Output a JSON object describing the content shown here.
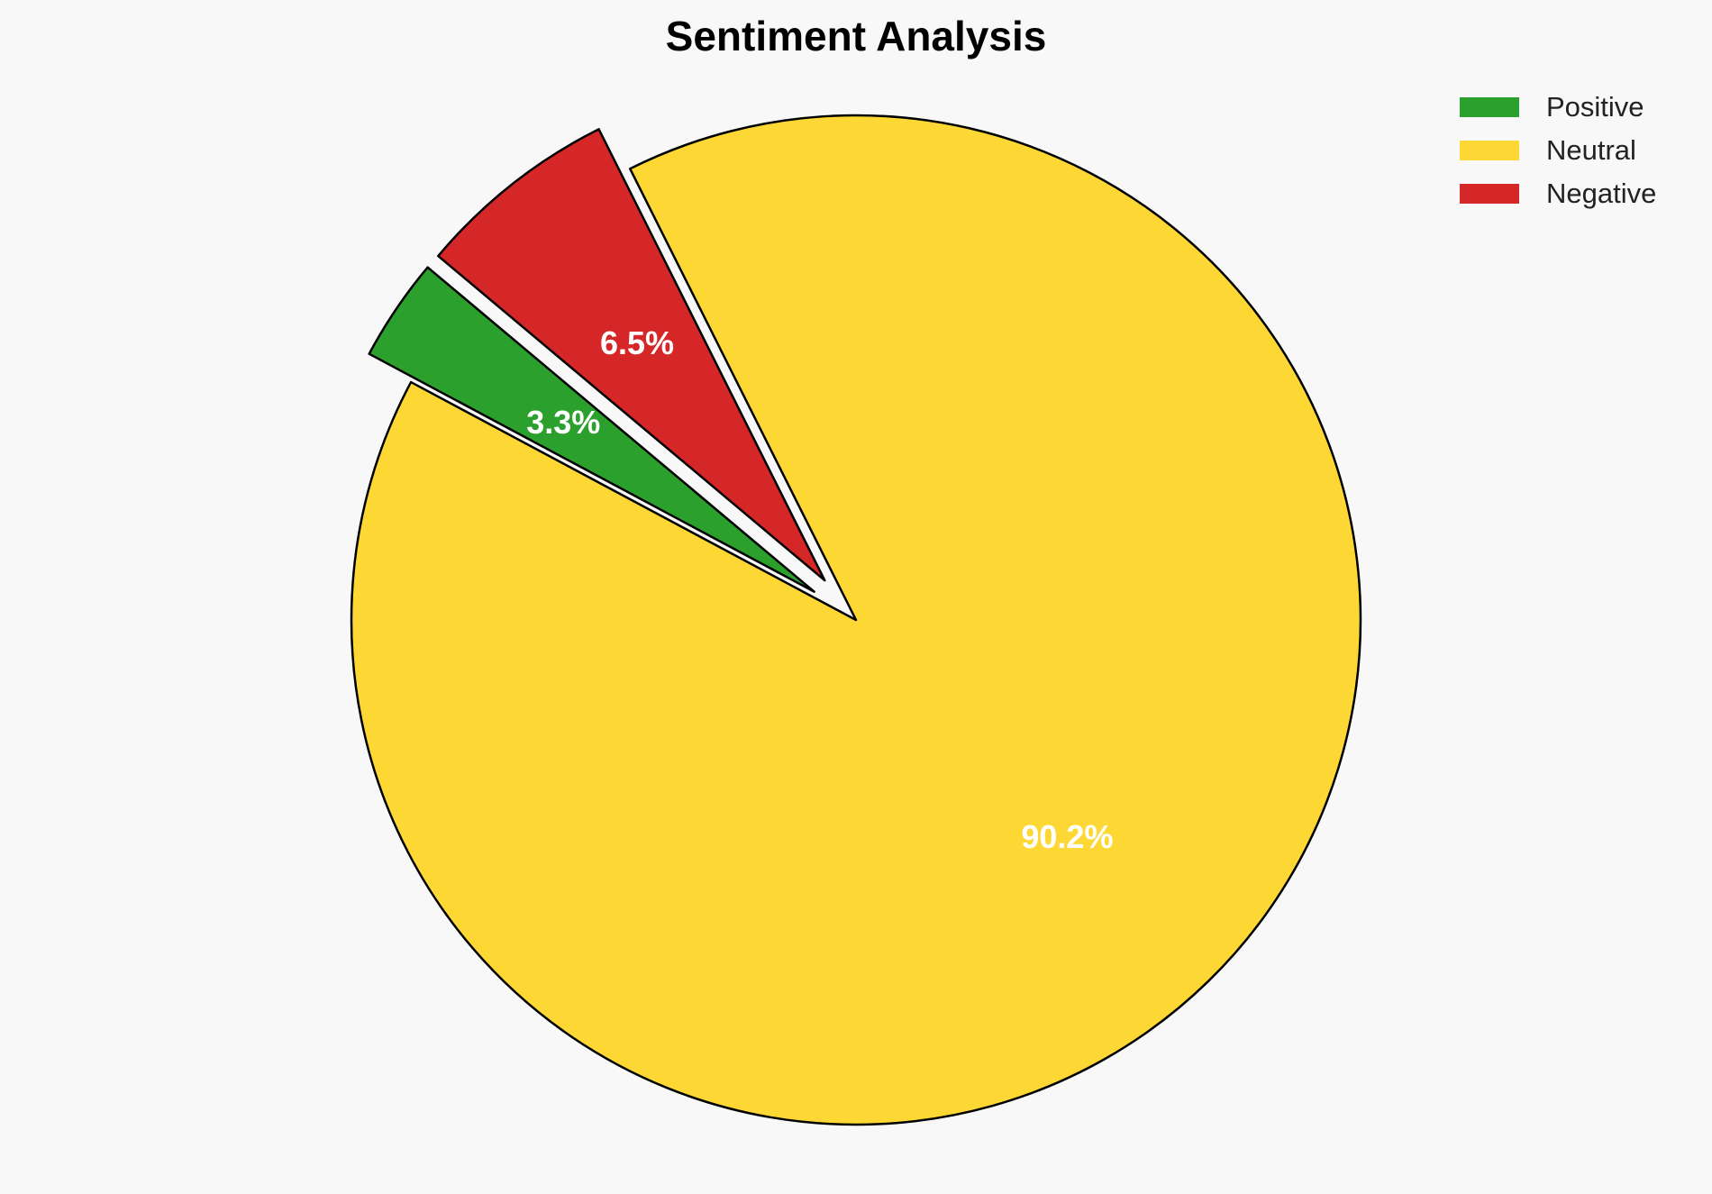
{
  "chart_data": {
    "type": "pie",
    "title": "Sentiment Analysis",
    "slices": [
      {
        "label": "Positive",
        "value": 3.3,
        "display": "3.3%",
        "color": "#2ca02c",
        "exploded": true
      },
      {
        "label": "Neutral",
        "value": 90.2,
        "display": "90.2%",
        "color": "#fdd835",
        "exploded": false
      },
      {
        "label": "Negative",
        "value": 6.5,
        "display": "6.5%",
        "color": "#d62728",
        "exploded": true
      }
    ],
    "legend": {
      "position": "top-right"
    }
  }
}
